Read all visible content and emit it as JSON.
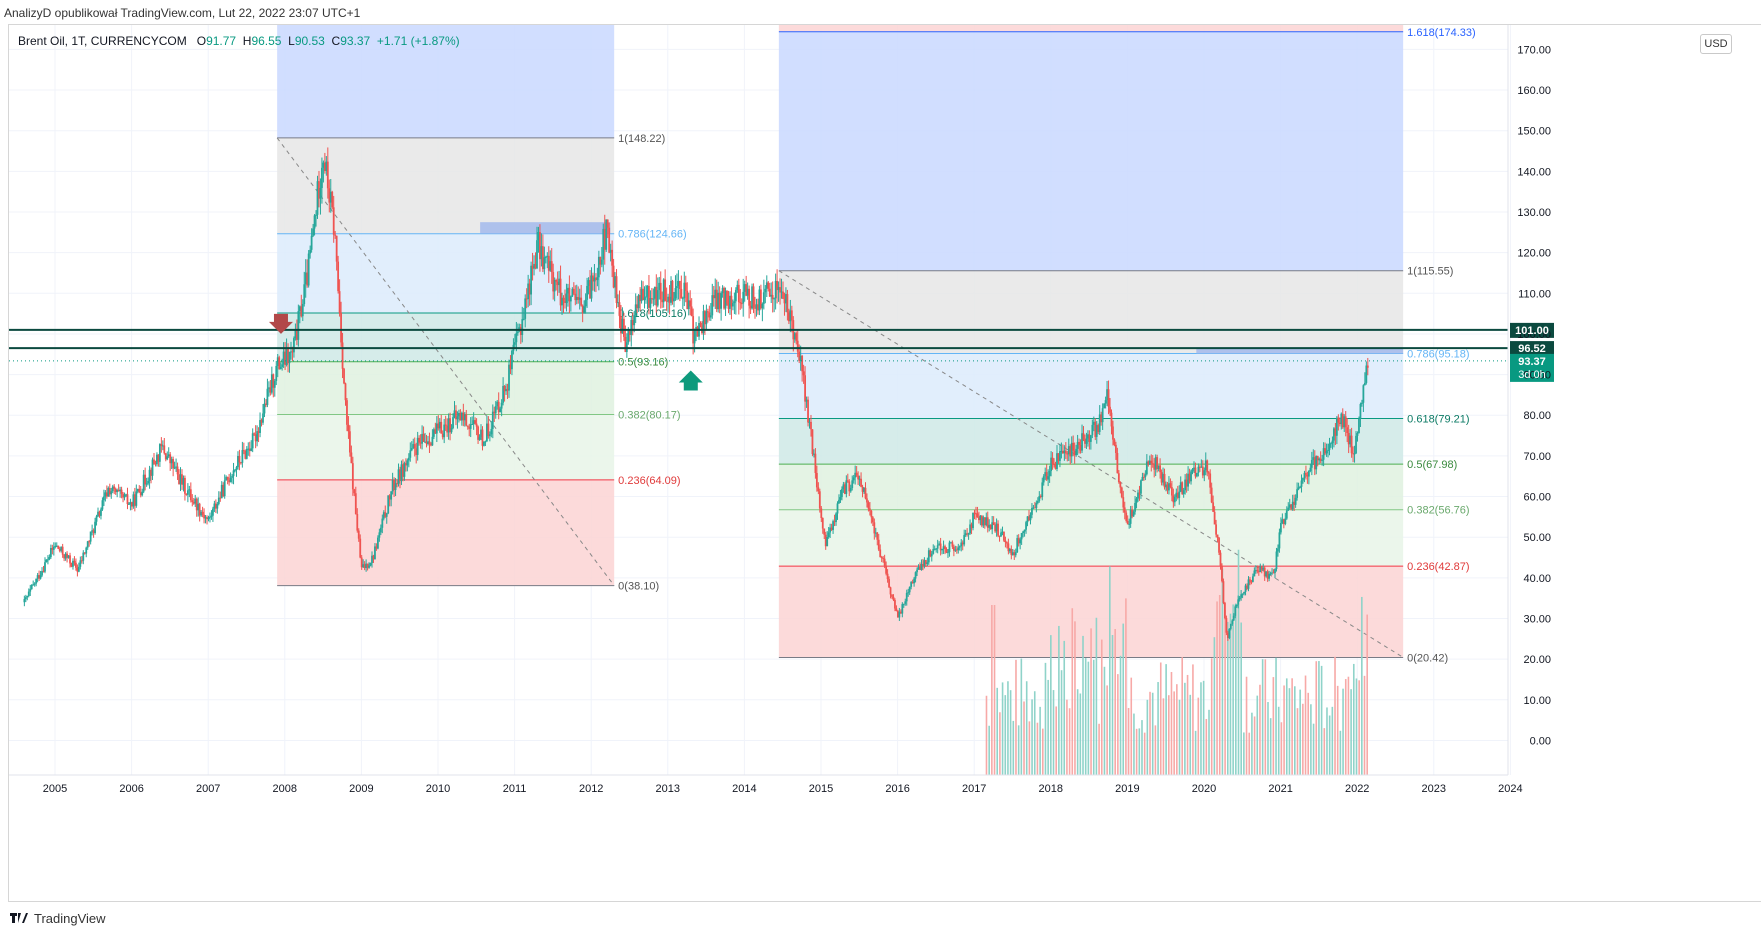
{
  "header": {
    "publisher_line": "AnalizyD opublikował TradingView.com, Lut 22, 2022 23:07 UTC+1"
  },
  "legend": {
    "symbol": "Brent Oil, 1T, CURRENCYCOM",
    "o_label": "O",
    "o_value": "91.77",
    "h_label": "H",
    "h_value": "96.55",
    "l_label": "L",
    "l_value": "90.53",
    "c_label": "C",
    "c_value": "93.37",
    "change": "+1.71 (+1.87%)"
  },
  "currency_button": "USD",
  "footer": {
    "brand": "TradingView"
  },
  "colors": {
    "up": "#26a69a",
    "down": "#ef5350",
    "fib_blue": "#2962ff",
    "band_top": "#c9d8ff",
    "band_gray": "#e6e6e6",
    "band_lightblue": "#dcebfc",
    "band_teal": "#cfe9e6",
    "band_green": "#dff1df",
    "band_red": "#fbd3d3",
    "hline": "#0b4a3f",
    "arrow_down": "#b24848",
    "arrow_up": "#0d9a7c"
  },
  "chart_data": {
    "type": "candlestick",
    "x_axis_labels": [
      "2005",
      "2006",
      "2007",
      "2008",
      "2009",
      "2010",
      "2011",
      "2012",
      "2013",
      "2014",
      "2015",
      "2016",
      "2017",
      "2018",
      "2019",
      "2020",
      "2021",
      "2022",
      "2023",
      "2024"
    ],
    "y_axis_labels": [
      "0.00",
      "10.00",
      "20.00",
      "30.00",
      "40.00",
      "50.00",
      "60.00",
      "70.00",
      "80.00",
      "90.00",
      "100.00",
      "110.00",
      "120.00",
      "130.00",
      "140.00",
      "150.00",
      "160.00",
      "170.00"
    ],
    "ylim": [
      -8.5,
      176
    ],
    "price_tags": [
      {
        "value": 101.0,
        "label": "101.00",
        "bg": "#0b4a3f"
      },
      {
        "value": 96.52,
        "label": "96.52",
        "bg": "#0b4a3f"
      },
      {
        "value": 93.37,
        "label": "93.37",
        "sub": "3d 0h",
        "bg": "#089981"
      }
    ],
    "horizontal_lines": [
      101.0,
      96.52
    ],
    "fib_1": {
      "start": 2007.9,
      "end": 2012.3,
      "high": 148.22,
      "low": 38.1,
      "levels": [
        {
          "ratio": "1",
          "value": 148.22,
          "text": "1(148.22)"
        },
        {
          "ratio": "0.786",
          "value": 124.66,
          "text": "0.786(124.66)"
        },
        {
          "ratio": "0.618",
          "value": 105.16,
          "text": "0.618(105.16)"
        },
        {
          "ratio": "0.5",
          "value": 93.16,
          "text": "0.5(93.16)"
        },
        {
          "ratio": "0.382",
          "value": 80.17,
          "text": "0.382(80.17)"
        },
        {
          "ratio": "0.236",
          "value": 64.09,
          "text": "0.236(64.09)"
        },
        {
          "ratio": "0",
          "value": 38.1,
          "text": "0(38.10)"
        }
      ]
    },
    "fib_2": {
      "start": 2014.45,
      "end": 2022.6,
      "high": 115.55,
      "low": 20.42,
      "levels": [
        {
          "ratio": "1.618",
          "value": 174.33,
          "text": "1.618(174.33)"
        },
        {
          "ratio": "1",
          "value": 115.55,
          "text": "1(115.55)"
        },
        {
          "ratio": "0.786",
          "value": 95.18,
          "text": "0.786(95.18)"
        },
        {
          "ratio": "0.618",
          "value": 79.21,
          "text": "0.618(79.21)"
        },
        {
          "ratio": "0.5",
          "value": 67.98,
          "text": "0.5(67.98)"
        },
        {
          "ratio": "0.382",
          "value": 56.76,
          "text": "0.382(56.76)"
        },
        {
          "ratio": "0.236",
          "value": 42.87,
          "text": "0.236(42.87)"
        },
        {
          "ratio": "0",
          "value": 20.42,
          "text": "0(20.42)"
        }
      ]
    },
    "price_path": [
      [
        2004.6,
        34
      ],
      [
        2005.0,
        48
      ],
      [
        2005.3,
        42
      ],
      [
        2005.7,
        62
      ],
      [
        2006.0,
        58
      ],
      [
        2006.4,
        72
      ],
      [
        2006.7,
        62
      ],
      [
        2007.0,
        54
      ],
      [
        2007.3,
        66
      ],
      [
        2007.6,
        74
      ],
      [
        2007.9,
        92
      ],
      [
        2008.1,
        95
      ],
      [
        2008.3,
        115
      ],
      [
        2008.5,
        145
      ],
      [
        2008.65,
        125
      ],
      [
        2008.8,
        80
      ],
      [
        2009.0,
        42
      ],
      [
        2009.15,
        45
      ],
      [
        2009.4,
        62
      ],
      [
        2009.7,
        72
      ],
      [
        2010.0,
        76
      ],
      [
        2010.3,
        80
      ],
      [
        2010.6,
        74
      ],
      [
        2010.9,
        88
      ],
      [
        2011.1,
        104
      ],
      [
        2011.3,
        122
      ],
      [
        2011.6,
        110
      ],
      [
        2011.9,
        106
      ],
      [
        2012.2,
        125
      ],
      [
        2012.45,
        96
      ],
      [
        2012.6,
        108
      ],
      [
        2012.9,
        110
      ],
      [
        2013.2,
        112
      ],
      [
        2013.35,
        99
      ],
      [
        2013.6,
        108
      ],
      [
        2013.9,
        110
      ],
      [
        2014.2,
        108
      ],
      [
        2014.45,
        112
      ],
      [
        2014.7,
        98
      ],
      [
        2014.9,
        70
      ],
      [
        2015.05,
        48
      ],
      [
        2015.3,
        62
      ],
      [
        2015.5,
        65
      ],
      [
        2015.75,
        48
      ],
      [
        2016.0,
        30
      ],
      [
        2016.2,
        40
      ],
      [
        2016.5,
        48
      ],
      [
        2016.8,
        47
      ],
      [
        2017.0,
        55
      ],
      [
        2017.3,
        52
      ],
      [
        2017.5,
        46
      ],
      [
        2017.8,
        58
      ],
      [
        2018.0,
        68
      ],
      [
        2018.3,
        72
      ],
      [
        2018.6,
        77
      ],
      [
        2018.75,
        85
      ],
      [
        2018.9,
        62
      ],
      [
        2019.0,
        53
      ],
      [
        2019.3,
        70
      ],
      [
        2019.6,
        60
      ],
      [
        2019.9,
        66
      ],
      [
        2020.05,
        68
      ],
      [
        2020.2,
        45
      ],
      [
        2020.3,
        25
      ],
      [
        2020.45,
        35
      ],
      [
        2020.7,
        42
      ],
      [
        2020.9,
        40
      ],
      [
        2021.0,
        52
      ],
      [
        2021.3,
        65
      ],
      [
        2021.6,
        72
      ],
      [
        2021.8,
        80
      ],
      [
        2021.95,
        70
      ],
      [
        2022.05,
        84
      ],
      [
        2022.15,
        93
      ]
    ]
  }
}
